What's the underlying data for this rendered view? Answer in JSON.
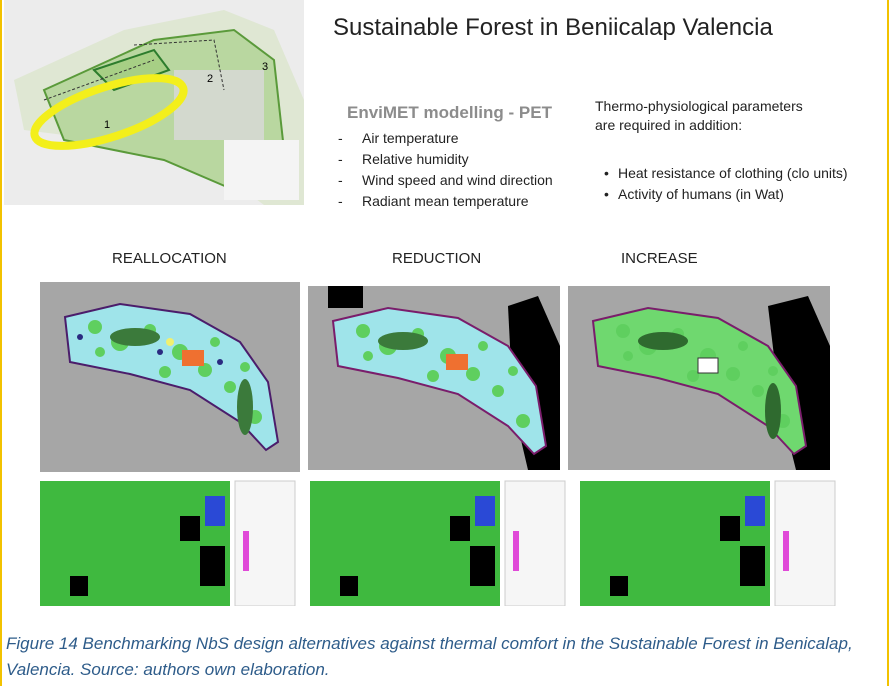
{
  "header": {
    "title": "Sustainable Forest in Beniicalap Valencia"
  },
  "model": {
    "heading": "EnviMET modelling - PET",
    "items": [
      "Air temperature",
      "Relative humidity",
      "Wind speed and wind direction",
      "Radiant mean temperature"
    ]
  },
  "parameters": {
    "intro": "Thermo-physiological parameters are required in addition:",
    "items": [
      "Heat resistance of clothing (clo units)",
      "Activity of humans (in Wat)"
    ]
  },
  "map_labels": [
    "1",
    "2",
    "3"
  ],
  "scenarios": [
    "REALLOCATION",
    "REDUCTION",
    "INCREASE"
  ],
  "caption": "Figure 14 Benchmarking NbS design alternatives against thermal comfort in the Sustainable Forest in Benicalap, Valencia. Source: authors own elaboration."
}
